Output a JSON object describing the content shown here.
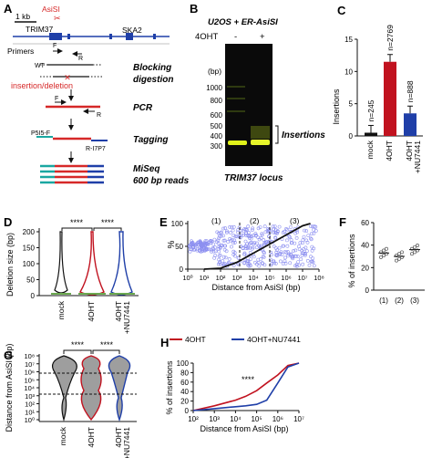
{
  "panels": {
    "A": "A",
    "B": "B",
    "C": "C",
    "D": "D",
    "E": "E",
    "F": "F",
    "G": "G",
    "H": "H"
  },
  "A": {
    "scale": "1 kb",
    "enzyme": "AsiSI",
    "gene1": "TRIM37",
    "gene2": "SKA2",
    "primers": "Primers",
    "primer_f": "F",
    "primer_r": "R",
    "wt": "WT",
    "indel": "insertion/deletion",
    "step1_line1": "Blocking",
    "step1_line2": "digestion",
    "step2": "PCR",
    "step3": "Tagging",
    "p5": "P5I5-F",
    "p7": "R-I7P7",
    "step4_line1": "MiSeq",
    "step4_line2": "600 bp reads"
  },
  "B": {
    "title": "U2OS + ER-AsiSI",
    "treat": "4OHT",
    "minus": "-",
    "plus": "+",
    "unit": "(bp)",
    "ladder": [
      "1000",
      "800",
      "600",
      "500",
      "400",
      "300"
    ],
    "band_label": "Insertions",
    "locus": "TRIM37 locus"
  },
  "C": {
    "ylabel": "Insertions",
    "ticks": [
      "0",
      "5",
      "10",
      "15"
    ],
    "chart_data": {
      "type": "bar",
      "categories": [
        "mock",
        "4OHT",
        "4OHT\n+NU7441"
      ],
      "values": [
        0.5,
        11.5,
        3.5
      ],
      "n_labels": [
        "n=245",
        "n=2769",
        "n=888"
      ],
      "colors": [
        "#111111",
        "#c1121f",
        "#1f3fa8"
      ],
      "ylim": [
        0,
        15
      ]
    }
  },
  "D": {
    "ylabel": "Deletion size (bp)",
    "ticks": [
      "0",
      "50",
      "100",
      "150",
      "200"
    ],
    "sig1": "****",
    "sig2": "****",
    "chart_data": {
      "type": "violin",
      "categories": [
        "mock",
        "4OHT",
        "4OHT\n+NU7441"
      ],
      "ylim": [
        0,
        200
      ]
    }
  },
  "E": {
    "ylabel": "%",
    "xlabel": "Distance from AsiSI (bp)",
    "yticks": [
      "0",
      "50",
      "100"
    ],
    "xticks": [
      "10⁰",
      "10¹",
      "10²",
      "10³",
      "10⁴",
      "10⁵",
      "10⁶",
      "10⁷",
      "10⁸"
    ],
    "regions": [
      "(1)",
      "(2)",
      "(3)"
    ],
    "chart_data": {
      "type": "scatter",
      "xscale": "log",
      "xlim": [
        1,
        100000000
      ],
      "ylim": [
        0,
        100
      ]
    }
  },
  "F": {
    "ylabel": "% of insertions",
    "ticks": [
      "0",
      "20",
      "40",
      "60"
    ],
    "chart_data": {
      "type": "scatter",
      "categories": [
        "(1)",
        "(2)",
        "(3)"
      ],
      "means": [
        33,
        30,
        36
      ],
      "ylim": [
        0,
        60
      ]
    }
  },
  "G": {
    "ylabel": "Distance from AsiSI (bp)",
    "ticks": [
      "10⁰",
      "10¹",
      "10²",
      "10³",
      "10⁴",
      "10⁵",
      "10⁶",
      "10⁷",
      "10⁸"
    ],
    "sig1": "****",
    "sig2": "****",
    "chart_data": {
      "type": "violin",
      "categories": [
        "mock",
        "4OHT",
        "4OHT\n+NU7441"
      ],
      "yscale": "log",
      "ylim": [
        1,
        100000000
      ]
    }
  },
  "H": {
    "ylabel": "% of insertions",
    "xlabel": "Distance from AsiSI (bp)",
    "yticks": [
      "0",
      "20",
      "40",
      "60",
      "80",
      "100"
    ],
    "xticks": [
      "10²",
      "10³",
      "10⁴",
      "10⁵",
      "10⁶",
      "10⁷"
    ],
    "sig": "****",
    "chart_data": {
      "type": "line",
      "xscale": "log",
      "xlim": [
        100,
        10000000
      ],
      "ylim": [
        0,
        100
      ],
      "series": [
        {
          "name": "4OHT",
          "color": "#c1121f",
          "x": [
            100,
            1000,
            10000,
            30000,
            100000,
            300000,
            1000000,
            3000000,
            10000000
          ],
          "y": [
            0,
            10,
            22,
            30,
            42,
            58,
            75,
            95,
            100
          ]
        },
        {
          "name": "4OHT+NU7441",
          "color": "#1f3fa8",
          "x": [
            100,
            1000,
            10000,
            30000,
            100000,
            300000,
            1000000,
            3000000,
            10000000
          ],
          "y": [
            0,
            4,
            8,
            10,
            13,
            22,
            58,
            92,
            100
          ]
        }
      ]
    }
  }
}
